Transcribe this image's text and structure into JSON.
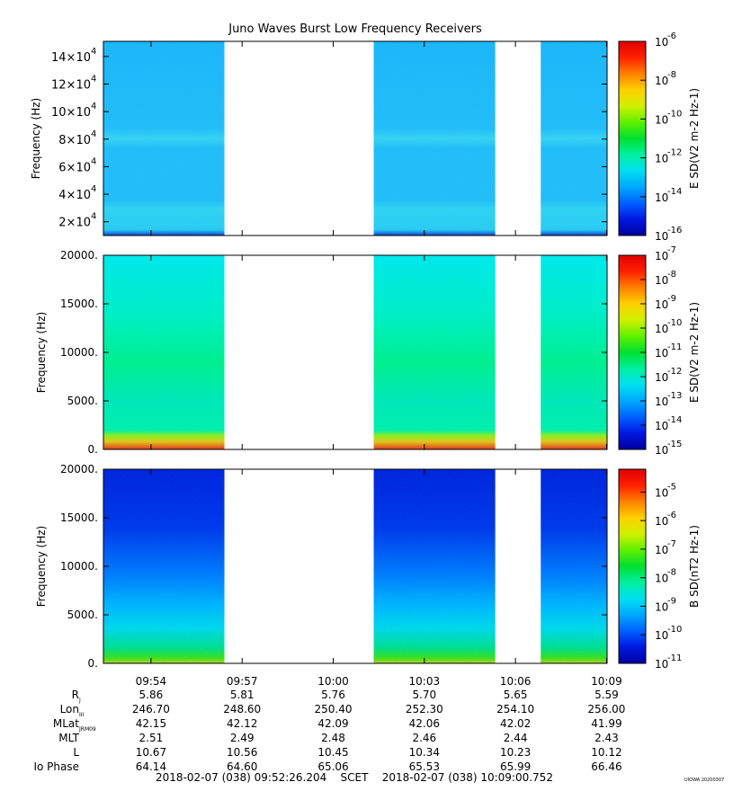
{
  "title": "Juno Waves Burst Low Frequency Receivers",
  "colors": {
    "colormap": [
      "#0000a0",
      "#0018e0",
      "#0060ff",
      "#00a8ff",
      "#00e0f0",
      "#00f0a0",
      "#00e030",
      "#60f000",
      "#d0f000",
      "#ffd000",
      "#ff8000",
      "#ff2000",
      "#e00000"
    ]
  },
  "time_axis": {
    "start": "09:52:26",
    "end": "10:09:01",
    "ticks": [
      "09:54",
      "09:57",
      "10:00",
      "10:03",
      "10:06",
      "10:09"
    ],
    "data_intervals": [
      [
        "09:52:26",
        "09:56:25"
      ],
      [
        "10:01:20",
        "10:05:20"
      ],
      [
        "10:06:50",
        "10:09:01"
      ]
    ]
  },
  "chart_data": [
    {
      "type": "heatmap",
      "ylabel": "Frequency (Hz)",
      "yticks": [
        {
          "v": 20000,
          "m": "2",
          "e": "4"
        },
        {
          "v": 40000,
          "m": "4",
          "e": "4"
        },
        {
          "v": 60000,
          "m": "6",
          "e": "4"
        },
        {
          "v": 80000,
          "m": "8",
          "e": "4"
        },
        {
          "v": 100000,
          "m": "10",
          "e": "4"
        },
        {
          "v": 120000,
          "m": "12",
          "e": "4"
        },
        {
          "v": 140000,
          "m": "14",
          "e": "4"
        }
      ],
      "ylim": [
        10000,
        151000
      ],
      "colorbar": {
        "label": "E SD(V2 m-2 Hz-1)",
        "scale": "log",
        "range_exp": [
          -16,
          -6
        ],
        "ticks": [
          "-6",
          "-8",
          "-10",
          "-12",
          "-14",
          "-16"
        ]
      }
    },
    {
      "type": "heatmap",
      "ylabel": "Frequency (Hz)",
      "yticks": [
        "0.",
        "5000.",
        "10000.",
        "15000.",
        "20000."
      ],
      "ylim": [
        0,
        20000
      ],
      "colorbar": {
        "label": "E SD(V2 m-2 Hz-1)",
        "scale": "log",
        "range_exp": [
          -15,
          -7
        ],
        "ticks": [
          "-7",
          "-8",
          "-9",
          "-10",
          "-11",
          "-12",
          "-13",
          "-14",
          "-15"
        ]
      }
    },
    {
      "type": "heatmap",
      "ylabel": "Frequency (Hz)",
      "yticks": [
        "0.",
        "5000.",
        "10000.",
        "15000.",
        "20000."
      ],
      "ylim": [
        0,
        20000
      ],
      "colorbar": {
        "label": "B SD(nT2 Hz-1)",
        "scale": "log",
        "range_exp": [
          -11,
          -4.2
        ],
        "ticks": [
          "-5",
          "-6",
          "-7",
          "-8",
          "-9",
          "-10",
          "-11"
        ]
      }
    }
  ],
  "ephemeris": {
    "rows": [
      {
        "label": "R",
        "sub": "J",
        "values": [
          "5.86",
          "5.81",
          "5.76",
          "5.70",
          "5.65",
          "5.59"
        ]
      },
      {
        "label": "Lon",
        "sub": "III",
        "values": [
          "246.70",
          "248.60",
          "250.40",
          "252.30",
          "254.10",
          "256.00"
        ]
      },
      {
        "label": "MLat",
        "sub": "JRM09",
        "values": [
          "42.15",
          "42.12",
          "42.09",
          "42.06",
          "42.02",
          "41.99"
        ]
      },
      {
        "label": "MLT",
        "sub": "",
        "values": [
          "2.51",
          "2.49",
          "2.48",
          "2.46",
          "2.44",
          "2.43"
        ]
      },
      {
        "label": "L",
        "sub": "",
        "values": [
          "10.67",
          "10.56",
          "10.45",
          "10.34",
          "10.23",
          "10.12"
        ]
      },
      {
        "label": "Io Phase",
        "sub": "",
        "values": [
          "64.14",
          "64.60",
          "65.06",
          "65.53",
          "65.99",
          "66.46"
        ]
      }
    ]
  },
  "footer": {
    "range": "2018-02-07 (038) 09:52:26.204    SCET    2018-02-07 (038) 10:09:00.752",
    "credit": "UIOWA 20200307"
  }
}
